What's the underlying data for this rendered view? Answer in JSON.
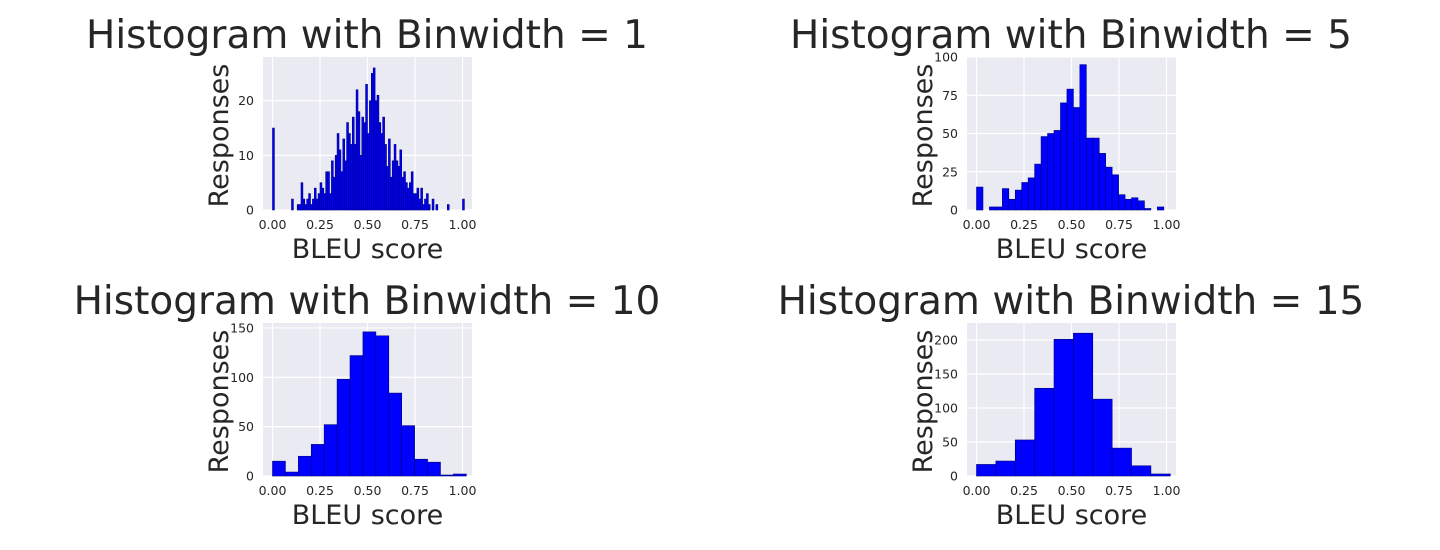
{
  "chart_data": [
    {
      "type": "bar",
      "title": "Histogram with Binwidth = 1",
      "xlabel": "BLEU score",
      "ylabel": "Responses",
      "xlim": [
        -0.05,
        1.05
      ],
      "ylim": [
        0,
        28
      ],
      "xticks": [
        "0.00",
        "0.25",
        "0.50",
        "0.75",
        "1.00"
      ],
      "yticks": [
        "0",
        "10",
        "20"
      ],
      "bar_color": "#0000ff",
      "edge_color": "#00007a",
      "bin_width": 0.01,
      "bins": [
        [
          0.0,
          15
        ],
        [
          0.1,
          2
        ],
        [
          0.13,
          1
        ],
        [
          0.14,
          1
        ],
        [
          0.15,
          5
        ],
        [
          0.16,
          2
        ],
        [
          0.17,
          1
        ],
        [
          0.18,
          2
        ],
        [
          0.19,
          3
        ],
        [
          0.2,
          1
        ],
        [
          0.21,
          2
        ],
        [
          0.22,
          4
        ],
        [
          0.23,
          2
        ],
        [
          0.24,
          3
        ],
        [
          0.25,
          5
        ],
        [
          0.26,
          4
        ],
        [
          0.27,
          3
        ],
        [
          0.28,
          7
        ],
        [
          0.29,
          7
        ],
        [
          0.3,
          3
        ],
        [
          0.31,
          9
        ],
        [
          0.32,
          6
        ],
        [
          0.33,
          10
        ],
        [
          0.34,
          14
        ],
        [
          0.35,
          11
        ],
        [
          0.36,
          7
        ],
        [
          0.37,
          13
        ],
        [
          0.38,
          9
        ],
        [
          0.39,
          16
        ],
        [
          0.4,
          14
        ],
        [
          0.41,
          12
        ],
        [
          0.42,
          17
        ],
        [
          0.43,
          12
        ],
        [
          0.44,
          22
        ],
        [
          0.45,
          18
        ],
        [
          0.46,
          10
        ],
        [
          0.47,
          17
        ],
        [
          0.48,
          16
        ],
        [
          0.49,
          23
        ],
        [
          0.5,
          14
        ],
        [
          0.51,
          20
        ],
        [
          0.52,
          25
        ],
        [
          0.53,
          26
        ],
        [
          0.54,
          20
        ],
        [
          0.55,
          21
        ],
        [
          0.56,
          16
        ],
        [
          0.57,
          14
        ],
        [
          0.58,
          17
        ],
        [
          0.59,
          12
        ],
        [
          0.6,
          8
        ],
        [
          0.61,
          13
        ],
        [
          0.62,
          6
        ],
        [
          0.63,
          9
        ],
        [
          0.64,
          12
        ],
        [
          0.65,
          9
        ],
        [
          0.66,
          8
        ],
        [
          0.67,
          11
        ],
        [
          0.68,
          6
        ],
        [
          0.69,
          7
        ],
        [
          0.7,
          5
        ],
        [
          0.71,
          4
        ],
        [
          0.72,
          5
        ],
        [
          0.73,
          7
        ],
        [
          0.74,
          3
        ],
        [
          0.75,
          3
        ],
        [
          0.76,
          4
        ],
        [
          0.77,
          2
        ],
        [
          0.78,
          4
        ],
        [
          0.79,
          1
        ],
        [
          0.8,
          2
        ],
        [
          0.81,
          3
        ],
        [
          0.82,
          1
        ],
        [
          0.84,
          2
        ],
        [
          0.86,
          1
        ],
        [
          0.92,
          1
        ],
        [
          1.0,
          2
        ]
      ]
    },
    {
      "type": "bar",
      "title": "Histogram with Binwidth = 5",
      "xlabel": "BLEU score",
      "ylabel": "Responses",
      "xlim": [
        -0.05,
        1.05
      ],
      "ylim": [
        0,
        100
      ],
      "xticks": [
        "0.00",
        "0.25",
        "0.50",
        "0.75",
        "1.00"
      ],
      "yticks": [
        "0",
        "25",
        "50",
        "75",
        "100"
      ],
      "bar_color": "#0000ff",
      "edge_color": "#00007a",
      "bin_width": 0.034,
      "bins": [
        [
          0.0,
          15
        ],
        [
          0.068,
          2
        ],
        [
          0.102,
          2
        ],
        [
          0.136,
          14
        ],
        [
          0.17,
          7
        ],
        [
          0.204,
          13
        ],
        [
          0.238,
          18
        ],
        [
          0.272,
          21
        ],
        [
          0.306,
          30
        ],
        [
          0.34,
          48
        ],
        [
          0.374,
          50
        ],
        [
          0.408,
          52
        ],
        [
          0.442,
          70
        ],
        [
          0.476,
          79
        ],
        [
          0.51,
          67
        ],
        [
          0.544,
          95
        ],
        [
          0.578,
          47
        ],
        [
          0.612,
          47
        ],
        [
          0.646,
          37
        ],
        [
          0.68,
          28
        ],
        [
          0.714,
          23
        ],
        [
          0.748,
          10
        ],
        [
          0.782,
          7
        ],
        [
          0.816,
          8
        ],
        [
          0.85,
          6
        ],
        [
          0.884,
          1
        ],
        [
          0.952,
          2
        ]
      ]
    },
    {
      "type": "bar",
      "title": "Histogram with Binwidth = 10",
      "xlabel": "BLEU score",
      "ylabel": "Responses",
      "xlim": [
        -0.05,
        1.05
      ],
      "ylim": [
        0,
        155
      ],
      "xticks": [
        "0.00",
        "0.25",
        "0.50",
        "0.75",
        "1.00"
      ],
      "yticks": [
        "0",
        "50",
        "100",
        "150"
      ],
      "bar_color": "#0000ff",
      "edge_color": "#00007a",
      "bin_width": 0.068,
      "bins": [
        [
          0.0,
          15
        ],
        [
          0.068,
          4
        ],
        [
          0.136,
          20
        ],
        [
          0.204,
          32
        ],
        [
          0.272,
          52
        ],
        [
          0.34,
          98
        ],
        [
          0.408,
          122
        ],
        [
          0.476,
          146
        ],
        [
          0.544,
          142
        ],
        [
          0.612,
          84
        ],
        [
          0.68,
          51
        ],
        [
          0.748,
          17
        ],
        [
          0.816,
          14
        ],
        [
          0.884,
          1
        ],
        [
          0.952,
          2
        ]
      ]
    },
    {
      "type": "bar",
      "title": "Histogram with Binwidth = 15",
      "xlabel": "BLEU score",
      "ylabel": "Responses",
      "xlim": [
        -0.05,
        1.05
      ],
      "ylim": [
        0,
        225
      ],
      "xticks": [
        "0.00",
        "0.25",
        "0.50",
        "0.75",
        "1.00"
      ],
      "yticks": [
        "0",
        "50",
        "100",
        "150",
        "200"
      ],
      "bar_color": "#0000ff",
      "edge_color": "#00007a",
      "bin_width": 0.102,
      "bins": [
        [
          0.0,
          17
        ],
        [
          0.102,
          22
        ],
        [
          0.204,
          53
        ],
        [
          0.306,
          129
        ],
        [
          0.408,
          201
        ],
        [
          0.51,
          210
        ],
        [
          0.612,
          113
        ],
        [
          0.714,
          41
        ],
        [
          0.816,
          15
        ],
        [
          0.918,
          3
        ]
      ]
    }
  ]
}
